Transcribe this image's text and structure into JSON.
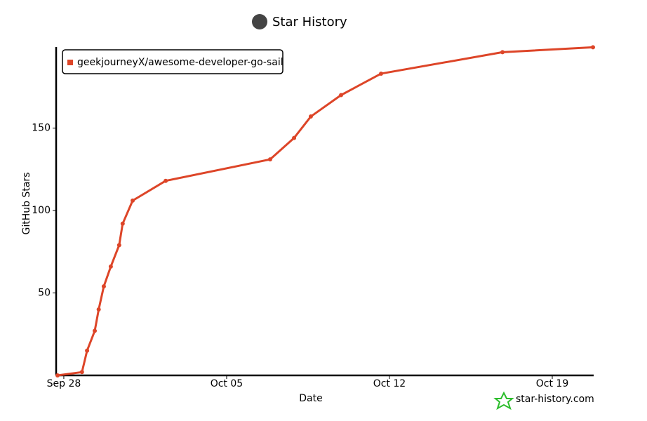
{
  "chart_data": {
    "type": "line",
    "title": "Star History",
    "x_label": "Date",
    "y_label": "GitHub Stars",
    "watermark": "star-history.com",
    "x": [
      -0.27,
      0.78,
      1.0,
      1.33,
      1.5,
      1.72,
      2.02,
      2.38,
      2.53,
      2.96,
      4.38,
      8.87,
      9.9,
      10.62,
      11.92,
      13.64,
      18.86,
      22.75
    ],
    "series": [
      {
        "name": "geekjourneyX/awesome-developer-go-sail",
        "color": "#dd4528",
        "values": [
          0,
          2,
          15,
          27,
          40,
          54,
          66,
          79,
          92,
          106,
          118,
          131,
          144,
          157,
          170,
          183,
          196,
          199
        ]
      }
    ],
    "xlim": [
      -0.33,
      22.75
    ],
    "xticks": [
      {
        "value": 0,
        "label": "Sep 28"
      },
      {
        "value": 7,
        "label": "Oct 05"
      },
      {
        "value": 14,
        "label": "Oct 12"
      },
      {
        "value": 21,
        "label": "Oct 19"
      }
    ],
    "ylim": [
      0,
      200
    ],
    "yticks": [
      50,
      100,
      150
    ],
    "legend": "top-left"
  }
}
